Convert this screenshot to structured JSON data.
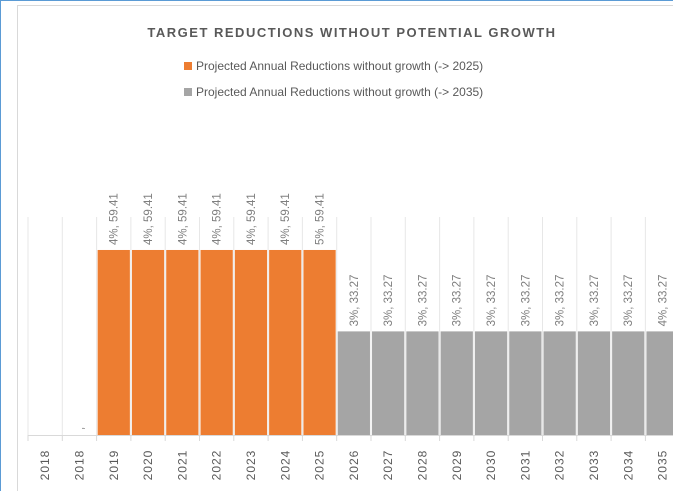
{
  "chart_data": {
    "type": "bar",
    "title": "TARGET REDUCTIONS WITHOUT POTENTIAL GROWTH",
    "categories": [
      "2018",
      "2018",
      "2019",
      "2020",
      "2021",
      "2022",
      "2023",
      "2024",
      "2025",
      "2026",
      "2027",
      "2028",
      "2029",
      "2030",
      "2031",
      "2032",
      "2033",
      "2034",
      "2035"
    ],
    "series": [
      {
        "name": "Projected Annual Reductions without growth (-> 2025)",
        "color": "#ed7d31",
        "values": [
          null,
          null,
          59.41,
          59.41,
          59.41,
          59.41,
          59.41,
          59.41,
          59.41,
          null,
          null,
          null,
          null,
          null,
          null,
          null,
          null,
          null,
          null
        ],
        "value_labels": [
          null,
          ",",
          "4%, 59.41",
          "4%, 59.41",
          "4%, 59.41",
          "4%, 59.41",
          "4%, 59.41",
          "4%, 59.41",
          "5%, 59.41",
          null,
          null,
          null,
          null,
          null,
          null,
          null,
          null,
          null,
          null
        ]
      },
      {
        "name": "Projected Annual Reductions without growth (-> 2035)",
        "color": "#a5a5a5",
        "values": [
          null,
          null,
          null,
          null,
          null,
          null,
          null,
          null,
          null,
          33.27,
          33.27,
          33.27,
          33.27,
          33.27,
          33.27,
          33.27,
          33.27,
          33.27,
          33.27
        ],
        "value_labels": [
          null,
          null,
          null,
          null,
          null,
          null,
          null,
          null,
          null,
          "3%, 33.27",
          "3%, 33.27",
          "3%, 33.27",
          "3%, 33.27",
          "3%, 33.27",
          "3%, 33.27",
          "3%, 33.27",
          "3%, 33.27",
          "3%, 33.27",
          "4%, 33.27"
        ]
      }
    ],
    "ylim": [
      0,
      70
    ]
  }
}
